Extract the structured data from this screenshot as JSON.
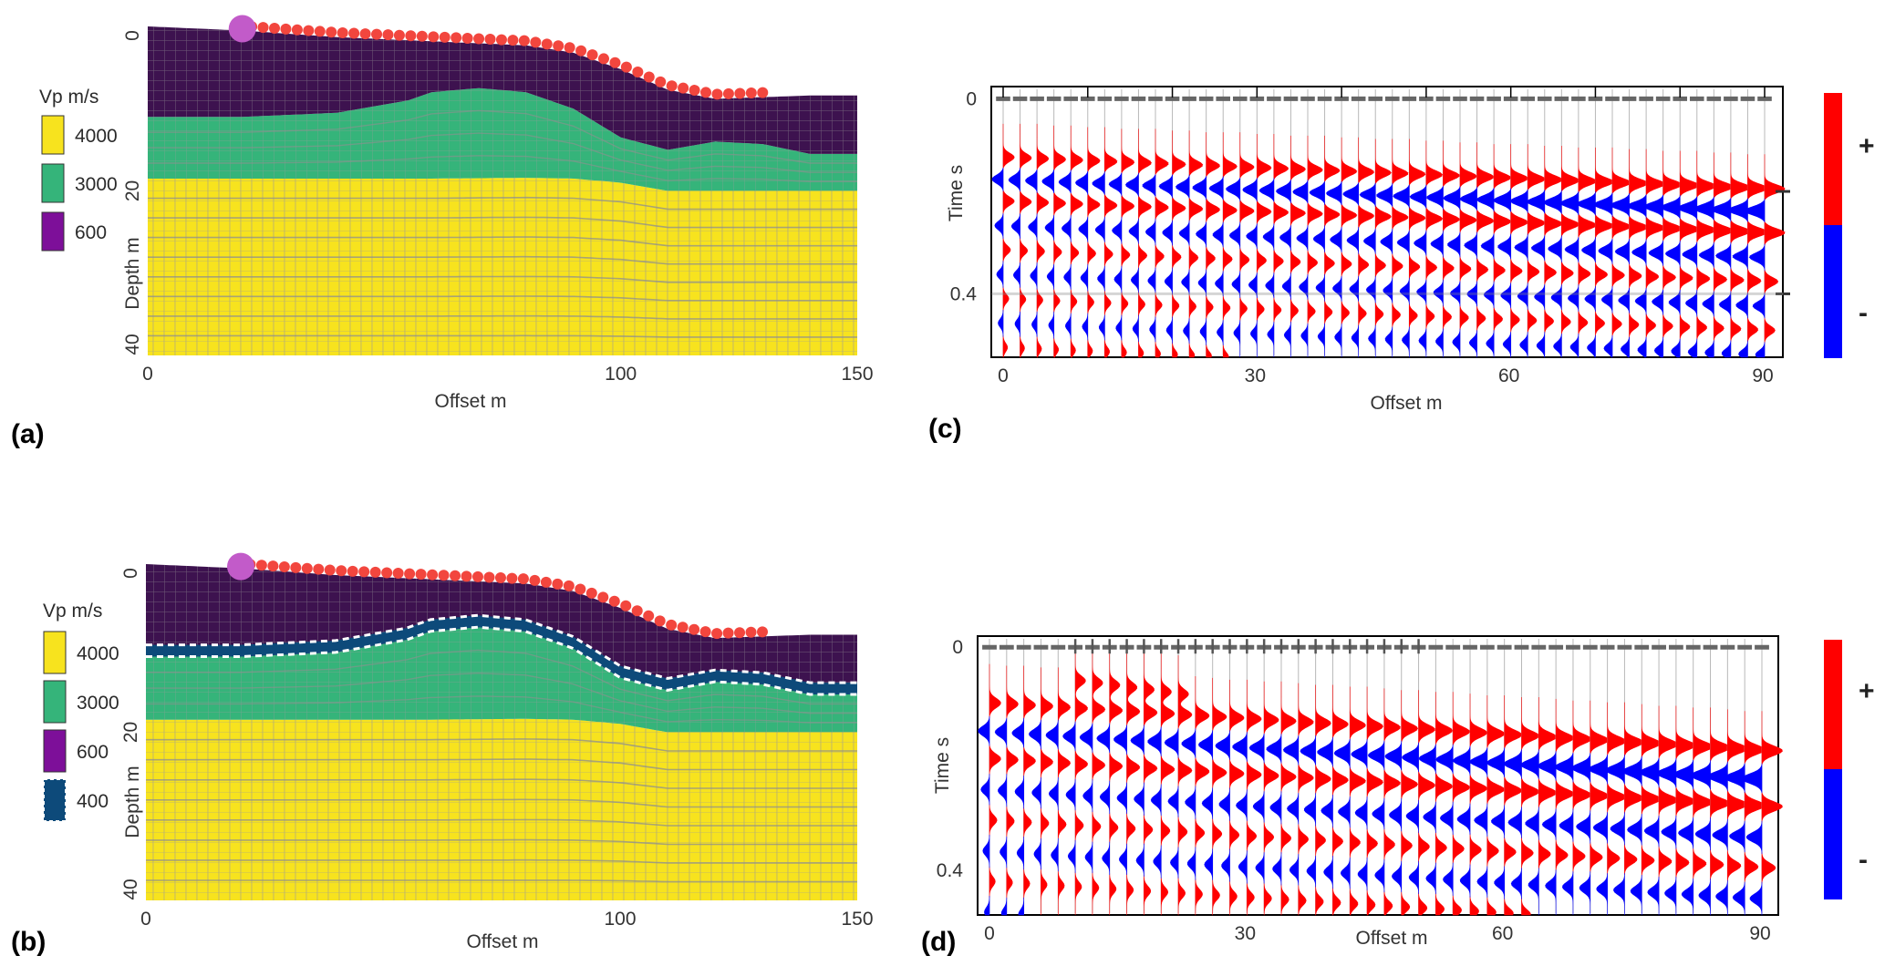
{
  "panels": {
    "a": {
      "label": "(a)",
      "legend_title": "Vp m/s",
      "legend": [
        {
          "label": "4000",
          "color": "#f7e31e"
        },
        {
          "label": "3000",
          "color": "#35b47a"
        },
        {
          "label": "600",
          "color": "#7d0f99"
        }
      ],
      "xlabel": "Offset m",
      "ylabel": "Depth m",
      "xticks": [
        "0",
        "100",
        "150"
      ],
      "yticks": [
        "0",
        "20",
        "40"
      ]
    },
    "b": {
      "label": "(b)",
      "legend_title": "Vp m/s",
      "legend": [
        {
          "label": "4000",
          "color": "#f7e31e"
        },
        {
          "label": "3000",
          "color": "#35b47a"
        },
        {
          "label": "600",
          "color": "#7d0f99"
        },
        {
          "label": "400",
          "color": "#0d4a7a"
        }
      ],
      "xlabel": "Offset m",
      "ylabel": "Depth m",
      "xticks": [
        "0",
        "100",
        "150"
      ],
      "yticks": [
        "0",
        "20",
        "40"
      ]
    },
    "c": {
      "label": "(c)",
      "xlabel": "Offset m",
      "ylabel": "Time s",
      "xticks": [
        "0",
        "30",
        "60",
        "90"
      ],
      "yticks": [
        "0",
        "0.4"
      ],
      "colorbar": {
        "plus": "+",
        "minus": "-"
      }
    },
    "d": {
      "label": "(d)",
      "xlabel": "Offset m",
      "ylabel": "Time s",
      "xticks": [
        "0",
        "30",
        "60",
        "90"
      ],
      "yticks": [
        "0",
        "0.4"
      ],
      "colorbar": {
        "plus": "+",
        "minus": "-"
      }
    }
  },
  "colors": {
    "yellow": "#f7e31e",
    "green": "#35b47a",
    "dark_purple": "#3d124f",
    "purple": "#7d0f99",
    "navy": "#0d4a7a",
    "source": "#c25bc9",
    "receiver": "#f2463e",
    "positive": "#ff0000",
    "negative": "#0000ff"
  },
  "chart_data": [
    {
      "id": "a",
      "type": "heatmap",
      "title": "",
      "xlabel": "Offset m",
      "ylabel": "Depth m",
      "xlim": [
        0,
        150
      ],
      "ylim": [
        0,
        40
      ],
      "surface": {
        "x": [
          0,
          20,
          40,
          60,
          80,
          90,
          100,
          110,
          120,
          130,
          140,
          150
        ],
        "depth": [
          0.0,
          0.5,
          1.3,
          1.8,
          2.3,
          3.2,
          5.2,
          7.7,
          8.8,
          8.6,
          8.4,
          8.4
        ]
      },
      "layer_3000_top": {
        "x": [
          0,
          20,
          40,
          55,
          60,
          70,
          80,
          90,
          100,
          110,
          120,
          130,
          140,
          150
        ],
        "depth": [
          11.0,
          11.0,
          10.5,
          9.0,
          8.0,
          7.5,
          8.0,
          10.0,
          13.5,
          15.0,
          14.0,
          14.3,
          15.5,
          15.5
        ]
      },
      "layer_4000_top": {
        "x": [
          0,
          60,
          80,
          90,
          100,
          110,
          120,
          150
        ],
        "depth": [
          18.5,
          18.5,
          18.4,
          18.5,
          19.0,
          20.0,
          20.0,
          20.0
        ]
      },
      "source_offset": 20,
      "receivers": {
        "start": 22,
        "end": 130,
        "count": 46
      }
    },
    {
      "id": "b",
      "type": "heatmap",
      "title": "",
      "xlabel": "Offset m",
      "ylabel": "Depth m",
      "xlim": [
        0,
        150
      ],
      "ylim": [
        0,
        40
      ],
      "surface": {
        "x": [
          0,
          20,
          40,
          60,
          80,
          90,
          100,
          110,
          120,
          130,
          140,
          150
        ],
        "depth": [
          0.0,
          0.5,
          1.3,
          1.8,
          2.3,
          3.2,
          5.2,
          7.7,
          8.8,
          8.6,
          8.4,
          8.4
        ]
      },
      "layer_3000_top": {
        "x": [
          0,
          20,
          40,
          55,
          60,
          70,
          80,
          90,
          100,
          110,
          120,
          130,
          140,
          150
        ],
        "depth": [
          11.0,
          11.0,
          10.5,
          9.0,
          8.0,
          7.5,
          8.0,
          10.0,
          13.5,
          15.0,
          14.0,
          14.3,
          15.5,
          15.5
        ]
      },
      "layer_4000_top": {
        "x": [
          0,
          60,
          80,
          90,
          100,
          110,
          120,
          150
        ],
        "depth": [
          18.5,
          18.5,
          18.4,
          18.5,
          19.0,
          20.0,
          20.0,
          20.0
        ]
      },
      "low_velocity_layer": {
        "vp": 400,
        "thickness": 1.4
      },
      "source_offset": 20,
      "receivers": {
        "start": 22,
        "end": 130,
        "count": 46
      }
    },
    {
      "id": "c",
      "type": "line",
      "title": "",
      "xlabel": "Offset m",
      "ylabel": "Time s",
      "xlim": [
        0,
        92
      ],
      "ylim": [
        0.53,
        -0.025
      ],
      "traces": {
        "x_start": 0,
        "x_end": 90,
        "count": 46
      },
      "first_arrival": {
        "t0": 0.12,
        "slope_s_per_m": 0.00072
      },
      "bands": [
        {
          "t": 0.12,
          "sign": 1
        },
        {
          "t": 0.165,
          "sign": -1
        },
        {
          "t": 0.21,
          "sign": 1
        }
      ],
      "trailing_period_s": 0.05,
      "marker_times": [
        0.19,
        0.4
      ]
    },
    {
      "id": "d",
      "type": "line",
      "title": "",
      "xlabel": "Offset m",
      "ylabel": "Time s",
      "xlim": [
        0,
        92
      ],
      "ylim": [
        0.48,
        -0.02
      ],
      "traces": {
        "x_start": 0,
        "x_end": 90,
        "count": 46
      },
      "first_arrival": {
        "t0": 0.1,
        "slope_s_per_m": 0.00095
      },
      "bands": [
        {
          "t": 0.1,
          "sign": 1
        },
        {
          "t": 0.15,
          "sign": -1
        },
        {
          "t": 0.2,
          "sign": 1
        }
      ],
      "trailing_period_s": 0.055,
      "early_event": {
        "t": 0.06,
        "x_start": 10,
        "x_end": 22
      },
      "cross_marks": {
        "x_start": 10,
        "x_end": 50
      }
    }
  ]
}
